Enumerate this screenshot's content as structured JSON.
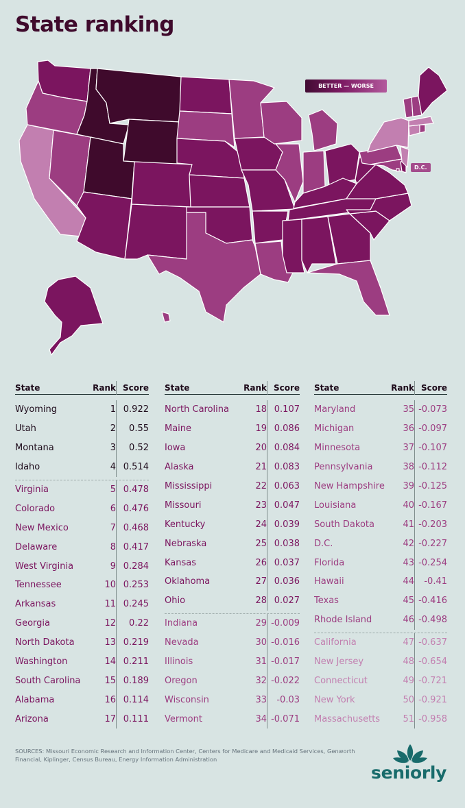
{
  "title": "State ranking",
  "legend": {
    "label": "BETTER — WORSE",
    "better_color": "#420b33",
    "worse_color": "#b35a9d"
  },
  "dc_label": "D.C.",
  "table_headers": {
    "state": "State",
    "rank": "Rank",
    "score": "Score"
  },
  "columns": [
    [
      {
        "state": "Wyoming",
        "rank": "1",
        "score": "0.922"
      },
      {
        "state": "Utah",
        "rank": "2",
        "score": "0.55"
      },
      {
        "state": "Montana",
        "rank": "3",
        "score": "0.52"
      },
      {
        "state": "Idaho",
        "rank": "4",
        "score": "0.514"
      },
      {
        "state": "Virginia",
        "rank": "5",
        "score": "0.478"
      },
      {
        "state": "Colorado",
        "rank": "6",
        "score": "0.476"
      },
      {
        "state": "New Mexico",
        "rank": "7",
        "score": "0.468"
      },
      {
        "state": "Delaware",
        "rank": "8",
        "score": "0.417"
      },
      {
        "state": "West Virginia",
        "rank": "9",
        "score": "0.284"
      },
      {
        "state": "Tennessee",
        "rank": "10",
        "score": "0.253"
      },
      {
        "state": "Arkansas",
        "rank": "11",
        "score": "0.245"
      },
      {
        "state": "Georgia",
        "rank": "12",
        "score": "0.22"
      },
      {
        "state": "North Dakota",
        "rank": "13",
        "score": "0.219"
      },
      {
        "state": "Washington",
        "rank": "14",
        "score": "0.211"
      },
      {
        "state": "South Carolina",
        "rank": "15",
        "score": "0.189"
      },
      {
        "state": "Alabama",
        "rank": "16",
        "score": "0.114"
      },
      {
        "state": "Arizona",
        "rank": "17",
        "score": "0.111"
      }
    ],
    [
      {
        "state": "North Carolina",
        "rank": "18",
        "score": "0.107"
      },
      {
        "state": "Maine",
        "rank": "19",
        "score": "0.086"
      },
      {
        "state": "Iowa",
        "rank": "20",
        "score": "0.084"
      },
      {
        "state": "Alaska",
        "rank": "21",
        "score": "0.083"
      },
      {
        "state": "Mississippi",
        "rank": "22",
        "score": "0.063"
      },
      {
        "state": "Missouri",
        "rank": "23",
        "score": "0.047"
      },
      {
        "state": "Kentucky",
        "rank": "24",
        "score": "0.039"
      },
      {
        "state": "Nebraska",
        "rank": "25",
        "score": "0.038"
      },
      {
        "state": "Kansas",
        "rank": "26",
        "score": "0.037"
      },
      {
        "state": "Oklahoma",
        "rank": "27",
        "score": "0.036"
      },
      {
        "state": "Ohio",
        "rank": "28",
        "score": "0.027"
      },
      {
        "state": "Indiana",
        "rank": "29",
        "score": "-0.009"
      },
      {
        "state": "Nevada",
        "rank": "30",
        "score": "-0.016"
      },
      {
        "state": "Illinois",
        "rank": "31",
        "score": "-0.017"
      },
      {
        "state": "Oregon",
        "rank": "32",
        "score": "-0.022"
      },
      {
        "state": "Wisconsin",
        "rank": "33",
        "score": "-0.03"
      },
      {
        "state": "Vermont",
        "rank": "34",
        "score": "-0.071"
      }
    ],
    [
      {
        "state": "Maryland",
        "rank": "35",
        "score": "-0.073"
      },
      {
        "state": "Michigan",
        "rank": "36",
        "score": "-0.097"
      },
      {
        "state": "Minnesota",
        "rank": "37",
        "score": "-0.107"
      },
      {
        "state": "Pennsylvania",
        "rank": "38",
        "score": "-0.112"
      },
      {
        "state": "New Hampshire",
        "rank": "39",
        "score": "-0.125"
      },
      {
        "state": "Louisiana",
        "rank": "40",
        "score": "-0.167"
      },
      {
        "state": "South Dakota",
        "rank": "41",
        "score": "-0.203"
      },
      {
        "state": "D.C.",
        "rank": "42",
        "score": "-0.227"
      },
      {
        "state": "Florida",
        "rank": "43",
        "score": "-0.254"
      },
      {
        "state": "Hawaii",
        "rank": "44",
        "score": "-0.41"
      },
      {
        "state": "Texas",
        "rank": "45",
        "score": "-0.416"
      },
      {
        "state": "Rhode Island",
        "rank": "46",
        "score": "-0.498"
      },
      {
        "state": "California",
        "rank": "47",
        "score": "-0.637"
      },
      {
        "state": "New Jersey",
        "rank": "48",
        "score": "-0.654"
      },
      {
        "state": "Connecticut",
        "rank": "49",
        "score": "-0.721"
      },
      {
        "state": "New York",
        "rank": "50",
        "score": "-0.921"
      },
      {
        "state": "Massachusetts",
        "rank": "51",
        "score": "-0.958"
      }
    ]
  ],
  "tier_colors": [
    "#3f0a2c",
    "#7b155f",
    "#9c3d81",
    "#c27fb0"
  ],
  "tier_breaks_rank": [
    4,
    28,
    46
  ],
  "sources": "SOURCES: Missouri Economic Research and Information Center, Centers for Medicare and Medicaid Services, Genworth Financial, Kiplinger, Census Bureau, Energy Information Administration",
  "brand": {
    "name": "seniorly",
    "color": "#186b6b",
    "icon": "lotus-leaf-icon"
  }
}
